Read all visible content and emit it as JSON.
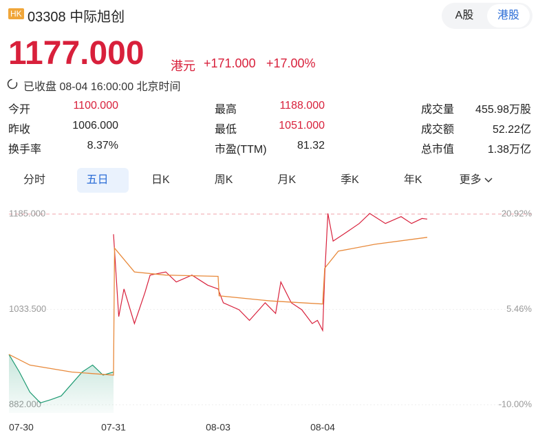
{
  "header": {
    "badge": "HK",
    "code": "03308",
    "name": "中际旭创",
    "market_tabs": [
      "A股",
      "港股"
    ],
    "price": "1177.000",
    "currency": "港元",
    "change": "+171.000",
    "change_pct": "+17.00%",
    "status": "已收盘 08-04 16:00:00 北京时间"
  },
  "stats": [
    [
      [
        "今开",
        "1100.000"
      ],
      [
        "最高",
        "1188.000"
      ],
      [
        "成交量",
        "455.98万股"
      ]
    ],
    [
      [
        "昨收",
        "1006.000"
      ],
      [
        "最低",
        "1051.000"
      ],
      [
        "成交额",
        "52.22亿"
      ]
    ],
    [
      [
        "换手率",
        "8.37%"
      ],
      [
        "市盈(TTM)",
        "81.32"
      ],
      [
        "总市值",
        "1.38万亿"
      ]
    ]
  ],
  "period_tabs": [
    "分时",
    "五日",
    "日K",
    "周K",
    "月K",
    "季K",
    "年K",
    "更多"
  ],
  "chart_data": {
    "type": "line",
    "xlim": [
      0,
      5
    ],
    "xticks": [
      {
        "value": 0,
        "label": "07-30"
      },
      {
        "value": 1,
        "label": "07-31"
      },
      {
        "value": 2,
        "label": "08-03"
      },
      {
        "value": 3,
        "label": "08-04"
      }
    ],
    "ylim": [
      882,
      1185
    ],
    "yticks": [
      {
        "value": 882,
        "label": "882.000"
      },
      {
        "value": 1033.5,
        "label": "1033.500"
      },
      {
        "value": 1185,
        "label": "1185.000"
      }
    ],
    "y2lim": [
      -10,
      20.92
    ],
    "y2ticks": [
      {
        "value": -10,
        "label": "-10.00%"
      },
      {
        "value": 5.46,
        "label": "5.46%"
      },
      {
        "value": 20.92,
        "label": "20.92%"
      }
    ],
    "series": [
      {
        "color": "#1d9a72",
        "x": [
          0,
          0.1,
          0.2,
          0.3,
          0.4,
          0.5,
          0.6,
          0.7,
          0.8,
          0.9,
          1.0
        ],
        "values": [
          962,
          934,
          902,
          885,
          890,
          896,
          915,
          934,
          945,
          929,
          934
        ]
      },
      {
        "color": "#d8203b",
        "x": [
          1.0,
          1.05,
          1.1,
          1.2,
          1.3,
          1.35,
          1.5,
          1.6,
          1.75,
          1.9,
          2.0,
          2.05,
          2.2,
          2.3,
          2.45,
          2.55,
          2.6,
          2.7,
          2.8,
          2.9,
          2.95,
          3.0,
          3.02,
          3.05,
          3.1,
          3.2,
          3.35,
          3.45,
          3.6,
          3.75,
          3.85,
          3.95,
          4.0
        ],
        "values": [
          1153,
          1022,
          1066,
          1011,
          1060,
          1088,
          1093,
          1077,
          1088,
          1072,
          1066,
          1044,
          1033,
          1016,
          1044,
          1027,
          1077,
          1044,
          1033,
          1011,
          1016,
          1000,
          1088,
          1186,
          1142,
          1153,
          1170,
          1186,
          1170,
          1181,
          1170,
          1178,
          1177
        ]
      },
      {
        "color": "#e8893a",
        "x": [
          0,
          0.2,
          0.6,
          1.0,
          1.01,
          1.2,
          1.5,
          2.0,
          2.01,
          2.5,
          3.0,
          3.02,
          3.15,
          3.5,
          4.0
        ],
        "values": [
          962,
          945,
          934,
          929,
          1131,
          1093,
          1088,
          1086,
          1055,
          1047,
          1042,
          1099,
          1126,
          1137,
          1148
        ]
      }
    ]
  }
}
